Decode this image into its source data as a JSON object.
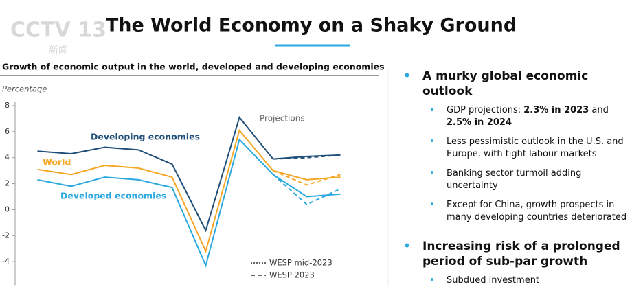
{
  "logo": {
    "text": "CCTV 13",
    "subtext": "新闻"
  },
  "header": {
    "title": "The World Economy on a Shaky Ground"
  },
  "chart_data": {
    "type": "line",
    "title": "Growth of economic output in the world, developed and developing economies",
    "y_label": "Percentage",
    "annotation": "Projections",
    "categories": [
      null,
      null,
      null,
      null,
      null,
      null,
      null,
      null,
      null,
      null
    ],
    "ylim": [
      -5.8,
      8
    ],
    "yticks": [
      8,
      6,
      4,
      2,
      0,
      -2,
      -4
    ],
    "series": [
      {
        "name": "Developing economies",
        "color": "#1f4e79",
        "values": [
          4.5,
          4.3,
          4.8,
          4.6,
          3.5,
          -1.6,
          7.1,
          3.9,
          4.1,
          4.2
        ],
        "alt_values": [
          null,
          null,
          null,
          null,
          null,
          null,
          null,
          3.9,
          4.0,
          4.2
        ]
      },
      {
        "name": "World",
        "color": "#f5a623",
        "values": [
          3.1,
          2.7,
          3.4,
          3.2,
          2.5,
          -3.2,
          6.1,
          3.0,
          2.3,
          2.5
        ],
        "alt_values": [
          null,
          null,
          null,
          null,
          null,
          null,
          null,
          3.0,
          1.9,
          2.7
        ]
      },
      {
        "name": "Developed economies",
        "color": "#29a8e0",
        "values": [
          2.3,
          1.8,
          2.5,
          2.3,
          1.7,
          -4.3,
          5.4,
          2.7,
          1.0,
          1.2
        ],
        "alt_values": [
          null,
          null,
          null,
          null,
          null,
          null,
          null,
          2.7,
          0.4,
          1.6
        ]
      }
    ],
    "line_styles": [
      {
        "label": "WESP mid-2023",
        "dash": "2 2"
      },
      {
        "label": "WESP 2023",
        "dash": "6 4"
      }
    ]
  },
  "sections": [
    {
      "heading": "A murky global economic outlook",
      "bullets": [
        [
          {
            "text": "GDP projections: "
          },
          {
            "text": "2.3% in 2023",
            "bold": true
          },
          {
            "text": " and "
          },
          {
            "text": "2.5% in 2024",
            "bold": true
          }
        ],
        [
          {
            "text": "Less pessimistic outlook in the U.S. and Europe, with tight labour markets"
          }
        ],
        [
          {
            "text": "Banking sector turmoil adding uncertainty"
          }
        ],
        [
          {
            "text": "Except for China, growth prospects in many developing countries deteriorated"
          }
        ]
      ]
    },
    {
      "heading": "Increasing risk of a prolonged period of sub-par growth",
      "bullets": [
        [
          {
            "text": "Subdued investment"
          }
        ]
      ]
    }
  ]
}
